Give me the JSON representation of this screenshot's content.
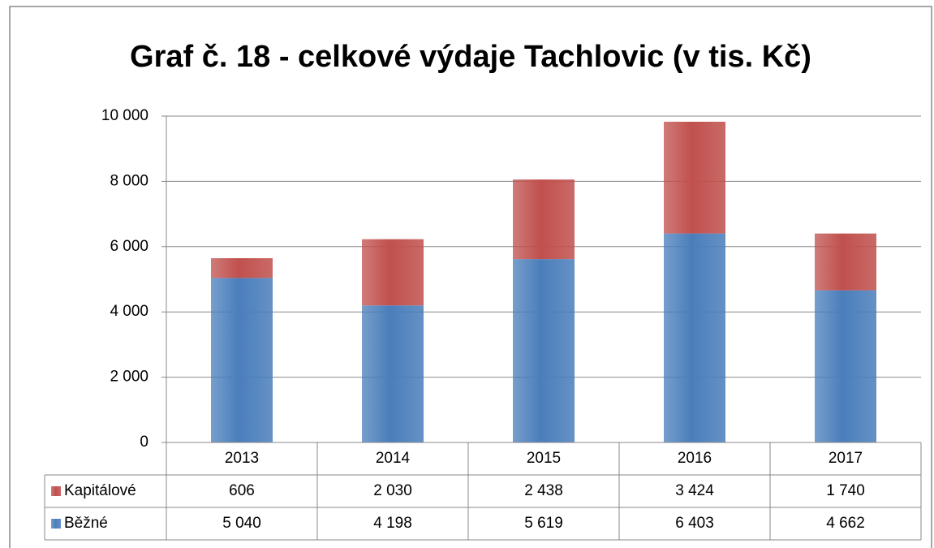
{
  "chart_data": {
    "type": "stacked_bar",
    "title": "Graf č. 18 - celkové výdaje Tachlovic (v tis. Kč)",
    "categories": [
      "2013",
      "2014",
      "2015",
      "2016",
      "2017"
    ],
    "series": [
      {
        "name": "Běžné",
        "color": "#4a7ebb",
        "values": [
          5040,
          4198,
          5619,
          6403,
          4662
        ],
        "value_labels": [
          "5 040",
          "4 198",
          "5 619",
          "6 403",
          "4 662"
        ]
      },
      {
        "name": "Kapitálové",
        "color": "#c0504d",
        "values": [
          606,
          2030,
          2438,
          3424,
          1740
        ],
        "value_labels": [
          "606",
          "2 030",
          "2 438",
          "3 424",
          "1 740"
        ]
      }
    ],
    "ylim": [
      0,
      10000
    ],
    "yticks": [
      0,
      {
        "value": 2000,
        "label": "2 000"
      },
      {
        "value": 4000,
        "label": "4 000"
      },
      {
        "value": 6000,
        "label": "6 000"
      },
      {
        "value": 8000,
        "label": "8 000"
      },
      {
        "value": 10000,
        "label": "10 000"
      }
    ],
    "grid": true,
    "data_table": true
  }
}
